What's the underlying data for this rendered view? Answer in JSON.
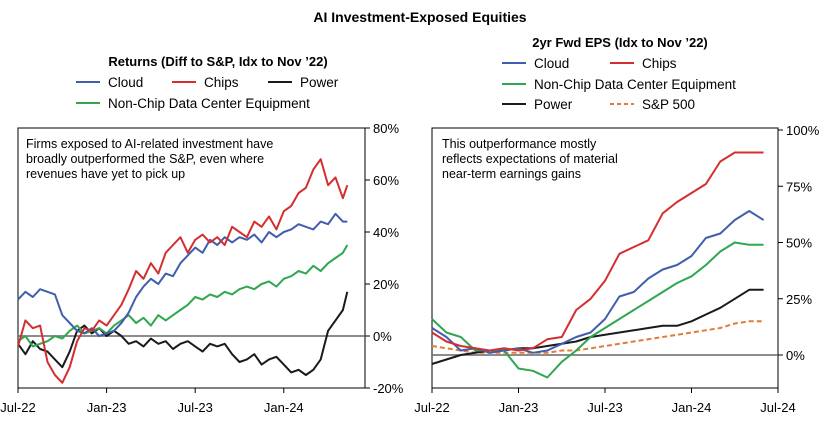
{
  "figure_title": "AI Investment-Exposed Equities",
  "chart_data": [
    {
      "type": "line",
      "title": "Returns (Diff to S&P, Idx to Nov ’22)",
      "annotation": "Firms exposed to AI-related investment have broadly outperformed the S&P, even where revenues have yet to pick up",
      "annotation_lines": [
        "Firms exposed to AI-related investment have",
        "broadly outperformed the S&P, even where",
        "revenues have yet to pick up"
      ],
      "x_tick_labels": [
        "Jul-22",
        "Jan-23",
        "Jul-23",
        "Jan-24"
      ],
      "x_tick_positions": [
        0,
        6,
        12,
        18
      ],
      "x_range": [
        0,
        23.5
      ],
      "y_range": [
        -20,
        80
      ],
      "y_ticks": [
        -20,
        0,
        20,
        40,
        60,
        80
      ],
      "y_tick_labels": [
        "-20%",
        "0%",
        "20%",
        "40%",
        "60%",
        "80%"
      ],
      "y_axis_side": "right",
      "legend_placement": "top",
      "series": [
        {
          "name": "Cloud",
          "color": "#3f5fad",
          "x": [
            0,
            0.5,
            1,
            1.5,
            2,
            2.5,
            3,
            3.5,
            4,
            4.5,
            5,
            5.5,
            6,
            6.5,
            7,
            7.5,
            8,
            8.5,
            9,
            9.5,
            10,
            10.5,
            11,
            11.5,
            12,
            12.5,
            13,
            13.5,
            14,
            14.5,
            15,
            15.5,
            16,
            16.5,
            17,
            17.5,
            18,
            18.5,
            19,
            19.5,
            20,
            20.5,
            21,
            21.5,
            22,
            22.3
          ],
          "y": [
            14,
            17,
            15,
            18,
            17,
            16,
            8,
            5,
            2,
            1,
            3,
            0,
            1,
            2,
            5,
            9,
            15,
            19,
            22,
            20,
            24,
            23,
            28,
            31,
            34,
            32,
            37,
            35,
            38,
            36,
            38,
            37,
            39,
            36,
            40,
            38,
            40,
            41,
            43,
            42,
            41,
            44,
            43,
            47,
            44,
            44
          ]
        },
        {
          "name": "Chips",
          "color": "#d32f2f",
          "x": [
            0,
            0.5,
            1,
            1.5,
            2,
            2.5,
            3,
            3.5,
            4,
            4.5,
            5,
            5.5,
            6,
            6.5,
            7,
            7.5,
            8,
            8.5,
            9,
            9.5,
            10,
            10.5,
            11,
            11.5,
            12,
            12.5,
            13,
            13.5,
            14,
            14.5,
            15,
            15.5,
            16,
            16.5,
            17,
            17.5,
            18,
            18.5,
            19,
            19.5,
            20,
            20.5,
            21,
            21.5,
            22,
            22.3
          ],
          "y": [
            -4,
            6,
            3,
            4,
            -10,
            -15,
            -18,
            -12,
            -2,
            3,
            2,
            6,
            4,
            8,
            12,
            18,
            25,
            22,
            28,
            24,
            32,
            35,
            38,
            32,
            37,
            39,
            36,
            38,
            35,
            42,
            40,
            38,
            44,
            42,
            46,
            41,
            48,
            50,
            55,
            57,
            64,
            68,
            58,
            61,
            53,
            58
          ]
        },
        {
          "name": "Power",
          "color": "#1a1a1a",
          "x": [
            0,
            0.5,
            1,
            1.5,
            2,
            2.5,
            3,
            3.5,
            4,
            4.5,
            5,
            5.5,
            6,
            6.5,
            7,
            7.5,
            8,
            8.5,
            9,
            9.5,
            10,
            10.5,
            11,
            11.5,
            12,
            12.5,
            13,
            13.5,
            14,
            14.5,
            15,
            15.5,
            16,
            16.5,
            17,
            17.5,
            18,
            18.5,
            19,
            19.5,
            20,
            20.5,
            21,
            21.5,
            22,
            22.3
          ],
          "y": [
            -3,
            -7,
            -2,
            -5,
            -6,
            -9,
            -12,
            -6,
            2,
            4,
            1,
            3,
            0,
            2,
            0,
            -3,
            -2,
            -4,
            -1,
            -3,
            -2,
            -5,
            -3,
            -2,
            -4,
            -6,
            -3,
            -4,
            -3,
            -7,
            -10,
            -9,
            -7,
            -11,
            -9,
            -8,
            -11,
            -14,
            -13,
            -15,
            -13,
            -9,
            2,
            6,
            10,
            17
          ]
        },
        {
          "name": "Non-Chip Data Center Equipment",
          "color": "#2fa74f",
          "x": [
            0,
            0.5,
            1,
            1.5,
            2,
            2.5,
            3,
            3.5,
            4,
            4.5,
            5,
            5.5,
            6,
            6.5,
            7,
            7.5,
            8,
            8.5,
            9,
            9.5,
            10,
            10.5,
            11,
            11.5,
            12,
            12.5,
            13,
            13.5,
            14,
            14.5,
            15,
            15.5,
            16,
            16.5,
            17,
            17.5,
            18,
            18.5,
            19,
            19.5,
            20,
            20.5,
            21,
            21.5,
            22,
            22.3
          ],
          "y": [
            -2,
            0,
            -4,
            -3,
            -2,
            0,
            -1,
            2,
            4,
            1,
            2,
            3,
            1,
            4,
            6,
            8,
            5,
            7,
            4,
            8,
            6,
            8,
            10,
            12,
            15,
            14,
            16,
            15,
            17,
            16,
            18,
            19,
            18,
            20,
            21,
            19,
            22,
            23,
            25,
            24,
            27,
            25,
            28,
            30,
            32,
            35
          ]
        }
      ]
    },
    {
      "type": "line",
      "title": "2yr Fwd EPS (Idx to Nov ’22)",
      "annotation": "This outperformance mostly reflects expectations of material near-term earnings gains",
      "annotation_lines": [
        "This outperformance mostly",
        "reflects expectations of material",
        "near-term earnings gains"
      ],
      "x_tick_labels": [
        "Jul-22",
        "Jan-23",
        "Jul-23",
        "Jan-24",
        "Jul-24"
      ],
      "x_tick_positions": [
        0,
        6,
        12,
        18,
        24
      ],
      "x_range": [
        0,
        24
      ],
      "y_range": [
        -10,
        100
      ],
      "y_ticks": [
        0,
        25,
        50,
        75,
        100
      ],
      "y_tick_labels": [
        "0%",
        "25%",
        "50%",
        "75%",
        "100%"
      ],
      "y_axis_side": "right",
      "legend_placement": "top",
      "series": [
        {
          "name": "Cloud",
          "color": "#3f5fad",
          "x": [
            0,
            1,
            2,
            3,
            4,
            5,
            6,
            7,
            8,
            9,
            10,
            11,
            12,
            13,
            14,
            15,
            16,
            17,
            18,
            19,
            20,
            21,
            22,
            23
          ],
          "y": [
            12,
            8,
            2,
            3,
            1,
            2,
            3,
            1,
            2,
            5,
            8,
            10,
            16,
            26,
            28,
            34,
            38,
            40,
            44,
            52,
            54,
            60,
            64,
            60
          ]
        },
        {
          "name": "Chips",
          "color": "#d32f2f",
          "x": [
            0,
            1,
            2,
            3,
            4,
            5,
            6,
            7,
            8,
            9,
            10,
            11,
            12,
            13,
            14,
            15,
            16,
            17,
            18,
            19,
            20,
            21,
            22,
            23
          ],
          "y": [
            10,
            6,
            4,
            3,
            2,
            3,
            2,
            3,
            7,
            8,
            20,
            25,
            33,
            45,
            48,
            51,
            63,
            68,
            72,
            76,
            86,
            90,
            90,
            90
          ]
        },
        {
          "name": "Non-Chip Data Center Equipment",
          "color": "#2fa74f",
          "x": [
            0,
            1,
            2,
            3,
            4,
            5,
            6,
            7,
            8,
            9,
            10,
            11,
            12,
            13,
            14,
            15,
            16,
            17,
            18,
            19,
            20,
            21,
            22,
            23
          ],
          "y": [
            16,
            10,
            8,
            2,
            2,
            2,
            -6,
            -7,
            -10,
            -3,
            2,
            8,
            12,
            16,
            20,
            24,
            28,
            32,
            35,
            40,
            46,
            50,
            49,
            49
          ]
        },
        {
          "name": "Power",
          "color": "#1a1a1a",
          "x": [
            0,
            1,
            2,
            3,
            4,
            5,
            6,
            7,
            8,
            9,
            10,
            11,
            12,
            13,
            14,
            15,
            16,
            17,
            18,
            19,
            20,
            21,
            22,
            23
          ],
          "y": [
            -4,
            -2,
            0,
            1,
            2,
            2,
            3,
            3,
            4,
            5,
            6,
            8,
            9,
            10,
            11,
            12,
            13,
            13,
            15,
            18,
            21,
            25,
            29,
            29
          ]
        },
        {
          "name": "S&P 500",
          "color": "#e07b39",
          "dashed": true,
          "x": [
            0,
            1,
            2,
            3,
            4,
            5,
            6,
            7,
            8,
            9,
            10,
            11,
            12,
            13,
            14,
            15,
            16,
            17,
            18,
            19,
            20,
            21,
            22,
            23
          ],
          "y": [
            4,
            3,
            2,
            1,
            1,
            1,
            1,
            1,
            1,
            2,
            2,
            3,
            4,
            5,
            6,
            7,
            8,
            9,
            10,
            11,
            12,
            14,
            15,
            15
          ]
        }
      ]
    }
  ]
}
